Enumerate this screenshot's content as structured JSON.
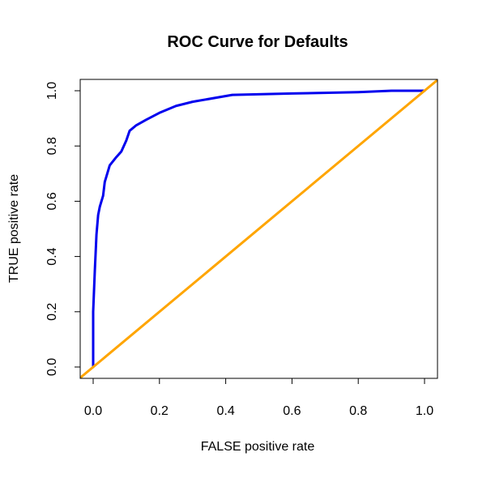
{
  "chart_data": {
    "type": "line",
    "title": "ROC Curve for Defaults",
    "xlabel": "FALSE positive rate",
    "ylabel": "TRUE positive rate",
    "xlim": [
      0.0,
      1.0
    ],
    "ylim": [
      0.0,
      1.0
    ],
    "x_ticks": [
      "0.0",
      "0.2",
      "0.4",
      "0.6",
      "0.8",
      "1.0"
    ],
    "y_ticks": [
      "0.0",
      "0.2",
      "0.4",
      "0.6",
      "0.8",
      "1.0"
    ],
    "grid": false,
    "series": [
      {
        "color": "#0000EE",
        "x": [
          0.0,
          0.0,
          0.005,
          0.01,
          0.015,
          0.02,
          0.03,
          0.035,
          0.05,
          0.07,
          0.085,
          0.1,
          0.11,
          0.13,
          0.16,
          0.2,
          0.25,
          0.3,
          0.42,
          0.6,
          0.8,
          0.9,
          1.0
        ],
        "y": [
          0.0,
          0.2,
          0.35,
          0.48,
          0.55,
          0.58,
          0.62,
          0.67,
          0.73,
          0.76,
          0.78,
          0.82,
          0.855,
          0.875,
          0.895,
          0.92,
          0.945,
          0.96,
          0.985,
          0.99,
          0.995,
          1.0,
          1.0
        ]
      },
      {
        "color": "#FFA500",
        "x": [
          -0.05,
          1.05
        ],
        "y": [
          -0.05,
          1.05
        ]
      }
    ]
  }
}
